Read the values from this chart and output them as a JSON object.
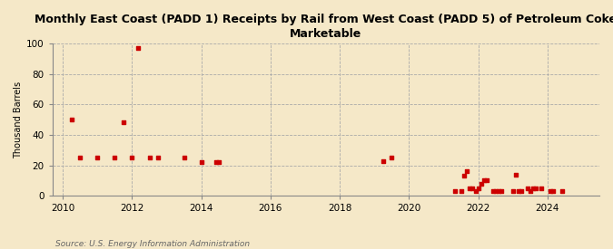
{
  "title": "Monthly East Coast (PADD 1) Receipts by Rail from West Coast (PADD 5) of Petroleum Coke\nMarketable",
  "ylabel": "Thousand Barrels",
  "source": "Source: U.S. Energy Information Administration",
  "bg_color": "#f5e8c8",
  "plot_bg_color": "#f5e8c8",
  "marker_color": "#cc0000",
  "xlim": [
    2009.7,
    2025.5
  ],
  "ylim": [
    0,
    100
  ],
  "yticks": [
    0,
    20,
    40,
    60,
    80,
    100
  ],
  "xticks": [
    2010,
    2012,
    2014,
    2016,
    2018,
    2020,
    2022,
    2024
  ],
  "data_points": [
    [
      2010.25,
      50
    ],
    [
      2010.5,
      25
    ],
    [
      2011.0,
      25
    ],
    [
      2011.5,
      25
    ],
    [
      2011.75,
      48
    ],
    [
      2012.0,
      25
    ],
    [
      2012.17,
      97
    ],
    [
      2012.5,
      25
    ],
    [
      2012.75,
      25
    ],
    [
      2013.5,
      25
    ],
    [
      2014.0,
      22
    ],
    [
      2014.42,
      22
    ],
    [
      2014.5,
      22
    ],
    [
      2019.25,
      23
    ],
    [
      2019.5,
      25
    ],
    [
      2021.33,
      3
    ],
    [
      2021.5,
      3
    ],
    [
      2021.58,
      13
    ],
    [
      2021.67,
      16
    ],
    [
      2021.75,
      5
    ],
    [
      2021.83,
      5
    ],
    [
      2021.92,
      3
    ],
    [
      2022.0,
      5
    ],
    [
      2022.08,
      8
    ],
    [
      2022.17,
      10
    ],
    [
      2022.25,
      10
    ],
    [
      2022.42,
      3
    ],
    [
      2022.5,
      3
    ],
    [
      2022.58,
      3
    ],
    [
      2022.67,
      3
    ],
    [
      2023.0,
      3
    ],
    [
      2023.08,
      14
    ],
    [
      2023.17,
      3
    ],
    [
      2023.25,
      3
    ],
    [
      2023.42,
      5
    ],
    [
      2023.5,
      3
    ],
    [
      2023.58,
      5
    ],
    [
      2023.67,
      5
    ],
    [
      2023.83,
      5
    ],
    [
      2024.08,
      3
    ],
    [
      2024.17,
      3
    ],
    [
      2024.42,
      3
    ]
  ]
}
